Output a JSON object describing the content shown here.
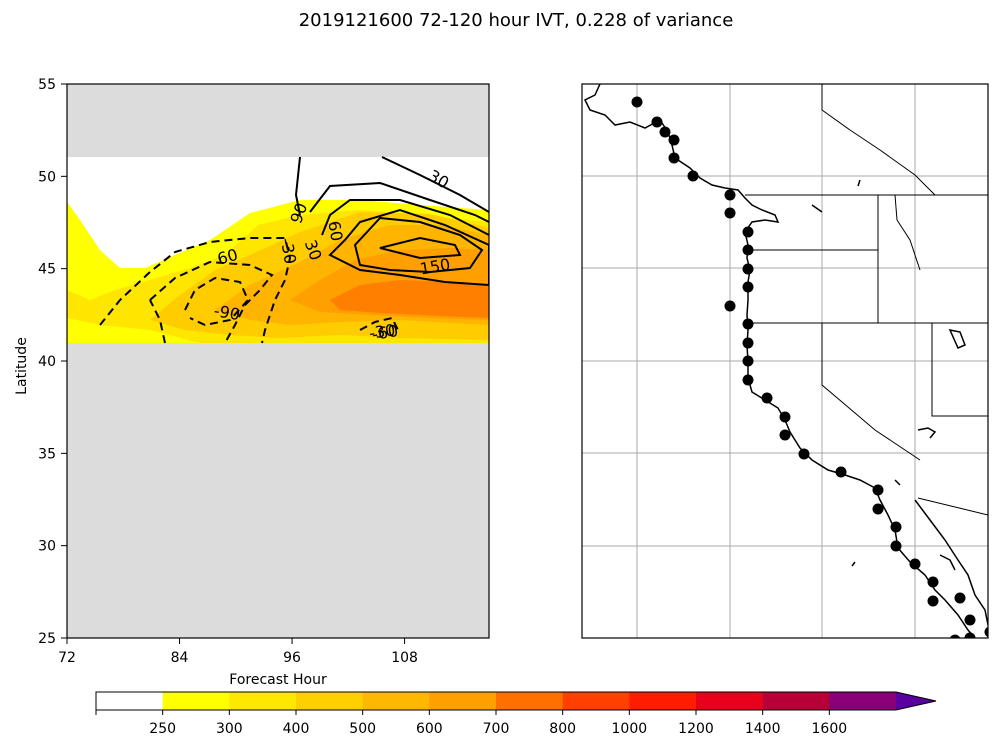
{
  "title": "2019121600 72-120 hour IVT, 0.228 of variance",
  "chart_data": [
    {
      "type": "contour",
      "xlabel": "Forecast Hour",
      "ylabel": "Latitude",
      "xlim": [
        72,
        117
      ],
      "ylim": [
        25,
        55
      ],
      "x_ticks": [
        "72",
        "84",
        "96",
        "108"
      ],
      "y_ticks": [
        "25",
        "30",
        "35",
        "40",
        "45",
        "50",
        "55"
      ],
      "data_band_latitudes": [
        41,
        51
      ],
      "masked_regions": [
        [
          51,
          55
        ],
        [
          25,
          41
        ]
      ],
      "contour_labels": [
        "30",
        "90",
        "60",
        "30",
        "-30",
        "60",
        "150",
        "-60",
        "-90",
        "-30"
      ],
      "filled_levels": [
        250,
        300,
        400,
        500,
        600,
        700
      ]
    },
    {
      "type": "map",
      "region": "US West Coast",
      "dot_count": 35
    }
  ],
  "colorbar": {
    "ticks": [
      "250",
      "300",
      "400",
      "500",
      "600",
      "700",
      "800",
      "1000",
      "1200",
      "1400",
      "1600"
    ],
    "colors": [
      "#ffffff",
      "#ffff00",
      "#ffe800",
      "#ffd000",
      "#ffb800",
      "#ffa000",
      "#ff7000",
      "#ff4000",
      "#ff1c00",
      "#e8001c",
      "#b80038",
      "#880078",
      "#5800a0"
    ]
  }
}
